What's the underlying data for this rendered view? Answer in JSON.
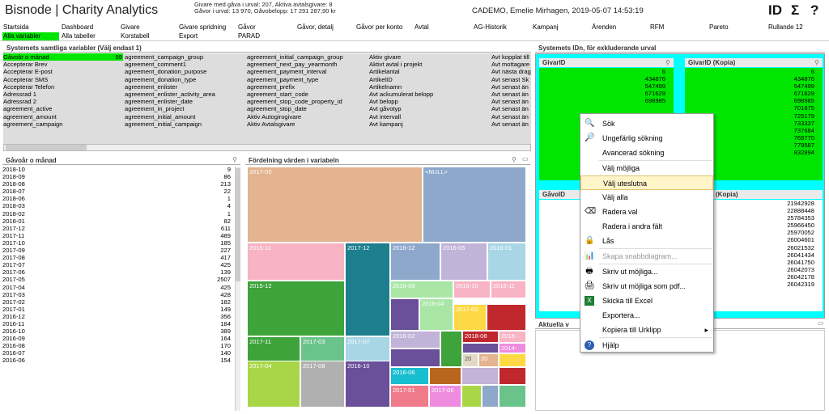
{
  "header": {
    "app_title": "Bisnode | Charity Analytics",
    "stats_line1": "Givare med gåva i urval: 207, Aktiva avtalsgivare: 8",
    "stats_line2": "Gåvor i urval: 13 970, Gåvobelopp: 17 291 287,90 kr",
    "user_info": "CADEMO, Emelie Mirhagen, 2019-05-07 14:53:19",
    "icon_id": "ID",
    "icon_sum": "Σ",
    "icon_help": "?"
  },
  "nav": {
    "row1": [
      "Startsida",
      "Dashboard",
      "Givare",
      "Givare spridning",
      "Gåvor",
      "Gåvor, detalj",
      "Gåvor per konto",
      "Avtal",
      "AG-Historik",
      "Kampanj",
      "Ärenden",
      "RFM",
      "Pareto",
      "Rullande 12"
    ],
    "row2": [
      "Alla variabler",
      "Alla tabeller",
      "Korstabell",
      "Export",
      "PARAD"
    ]
  },
  "variables_panel": {
    "title": "Systemets samtliga variabler (Välj endast 1)",
    "selected_count": "59",
    "col1": [
      "Gåvoår o månad",
      "Accepterar Brev",
      "Accepterar E-post",
      "Accepterar SMS",
      "Accepterar Telefon",
      "Adressrad 1",
      "Adressrad 2",
      "agreement_active",
      "agreement_amount",
      "agreement_campaign"
    ],
    "col2": [
      "agreement_campaign_group",
      "agreement_comment1",
      "agreement_donation_purpose",
      "agreement_donation_type",
      "agreement_enlister",
      "agreement_enlister_activity_area",
      "agreement_enlister_date",
      "agreement_in_project",
      "agreement_initial_amount",
      "agreement_initial_campaign"
    ],
    "col3": [
      "agreement_initial_campaign_group",
      "agreement_next_pay_yearmonth",
      "agreement_payment_interval",
      "agreement_payment_type",
      "agreement_prefix",
      "agreement_start_code",
      "agreement_stop_code_property_id",
      "agreement_stop_date",
      "Aktiv Autogirogivare",
      "Aktiv Avtalsgivare"
    ],
    "col4": [
      "Aktiv givare",
      "Aktivt avtal i projekt",
      "Artikelantal",
      "ArtikelID",
      "Artikelnamn",
      "Avt ackumulerat belopp",
      "Avt belopp",
      "Avt gåvotyp",
      "Avt intervall",
      "Avt kampanj"
    ],
    "col5": [
      "Avt kopplat till",
      "Avt mottagare",
      "Avt nästa drag",
      "Avt senast Sk",
      "Avt senast än",
      "Avt senast än",
      "Avt senast än",
      "Avt senast än",
      "Avt senast än",
      "Avt senast än"
    ]
  },
  "month_panel": {
    "title": "Gåvoår o månad",
    "rows": [
      [
        "2018-10",
        "9"
      ],
      [
        "2018-09",
        "86"
      ],
      [
        "2018-08",
        "213"
      ],
      [
        "2018-07",
        "22"
      ],
      [
        "2018-06",
        "1"
      ],
      [
        "2018-03",
        "4"
      ],
      [
        "2018-02",
        "1"
      ],
      [
        "2018-01",
        "82"
      ],
      [
        "2017-12",
        "611"
      ],
      [
        "2017-11",
        "489"
      ],
      [
        "2017-10",
        "185"
      ],
      [
        "2017-09",
        "227"
      ],
      [
        "2017-08",
        "417"
      ],
      [
        "2017-07",
        "425"
      ],
      [
        "2017-06",
        "139"
      ],
      [
        "2017-05",
        "2507"
      ],
      [
        "2017-04",
        "425"
      ],
      [
        "2017-03",
        "428"
      ],
      [
        "2017-02",
        "182"
      ],
      [
        "2017-01",
        "149"
      ],
      [
        "2016-12",
        "356"
      ],
      [
        "2016-11",
        "184"
      ],
      [
        "2016-10",
        "389"
      ],
      [
        "2016-09",
        "164"
      ],
      [
        "2016-08",
        "170"
      ],
      [
        "2016-07",
        "140"
      ],
      [
        "2016-06",
        "154"
      ]
    ]
  },
  "treemap_panel": {
    "title": "Fördelning värden i variabeln",
    "labels": [
      "2017-05",
      "<NULL>",
      "2015-11",
      "2017-12",
      "2016-12",
      "2016-05",
      "2016-01",
      "2015-12",
      "2016-09",
      "2016-10",
      "2016-11",
      "2016-04",
      "2017-02",
      "2017-11",
      "2017-03",
      "2017-07",
      "2016-02",
      "2018-08",
      "2015-",
      "2014-",
      "2017-04",
      "2017-08",
      "2016-10",
      "2016-06",
      "2017-01",
      "2017-06",
      "20",
      "20"
    ]
  },
  "selection_panel": {
    "title": "Systemets IDn, för exkluderande urval",
    "givarid_title": "GivarID",
    "givarid_copy_title": "GivarID (Kopia)",
    "givarid_values": [
      "6",
      "434876",
      "547499",
      "671629",
      "698985"
    ],
    "givarid_copy_values": [
      "6",
      "434876",
      "547499",
      "671629",
      "698985",
      "701875",
      "725179",
      "733337",
      "737684",
      "769770",
      "779587",
      "832894"
    ],
    "gavoid_title": "GåvoID",
    "gavoid_copy_title": "D (Kopia)",
    "gavoid_copy_values": [
      "21942928",
      "22888448",
      "25784353",
      "25966450",
      "25970052",
      "26004601",
      "26021532",
      "26041434",
      "26041750",
      "26042073",
      "26042178",
      "26042319"
    ],
    "current_title": "Aktuella v"
  },
  "context_menu": {
    "items": [
      {
        "label": "Sök",
        "icon": "search-icon",
        "disabled": false
      },
      {
        "label": "Ungefärlig sökning",
        "icon": "fuzzy-search-icon",
        "disabled": false
      },
      {
        "label": "Avancerad sökning",
        "icon": "",
        "disabled": false
      },
      {
        "label": "Välj möjliga",
        "icon": "",
        "disabled": false
      },
      {
        "label": "Välj uteslutna",
        "icon": "",
        "disabled": false
      },
      {
        "label": "Välj alla",
        "icon": "",
        "disabled": false
      },
      {
        "label": "Radera val",
        "icon": "eraser-icon",
        "disabled": false
      },
      {
        "label": "Radera i andra fält",
        "icon": "",
        "disabled": false
      },
      {
        "label": "Lås",
        "icon": "lock-icon",
        "disabled": false
      },
      {
        "label": "Skapa snabbdiagram...",
        "icon": "chart-icon",
        "disabled": true
      },
      {
        "label": "Skriv ut möjliga...",
        "icon": "printer-icon",
        "disabled": false
      },
      {
        "label": "Skriv ut möjliga som pdf...",
        "icon": "pdf-printer-icon",
        "disabled": false
      },
      {
        "label": "Skicka till Excel",
        "icon": "excel-icon",
        "disabled": false
      },
      {
        "label": "Exportera...",
        "icon": "",
        "disabled": false
      },
      {
        "label": "Kopiera till Urklipp",
        "icon": "",
        "disabled": false
      },
      {
        "label": "Hjälp",
        "icon": "help-icon",
        "disabled": false
      }
    ],
    "highlighted": "Välj uteslutna",
    "submenu_arrow": "▸"
  }
}
